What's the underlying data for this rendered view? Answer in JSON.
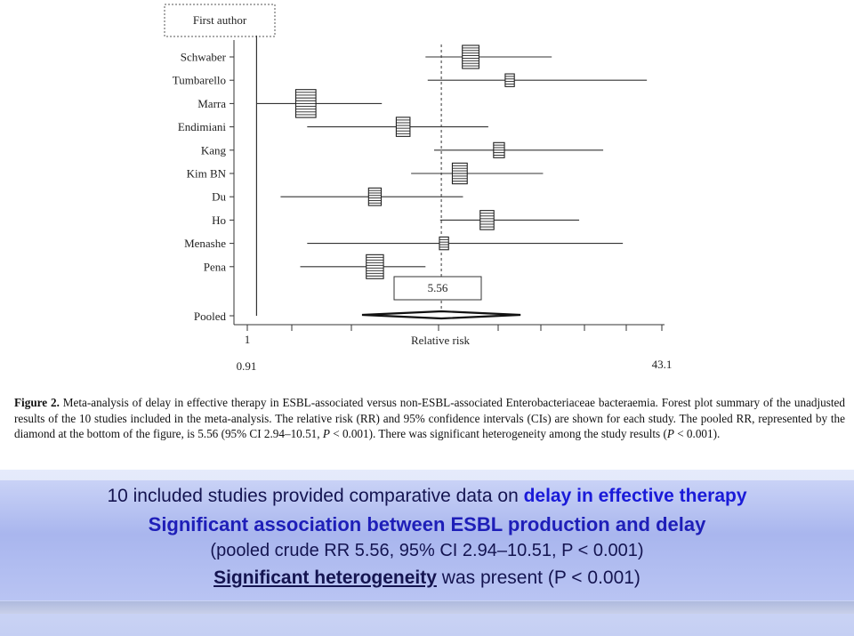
{
  "figure": {
    "header_label": "First author",
    "pooled_label": "Pooled",
    "pooled_value_label": "5.56",
    "axis_label": "Relative risk",
    "axis_tick_1": "1",
    "axis_min_label": "0.91",
    "axis_max_label": "43.1"
  },
  "chart_data": {
    "type": "forest",
    "xscale": "log",
    "xlim": [
      0.91,
      43.1
    ],
    "null_line": 1,
    "pooled": {
      "label": "Pooled",
      "rr": 5.56,
      "ci_low": 2.94,
      "ci_high": 10.51
    },
    "studies": [
      {
        "name": "Schwaber",
        "rr": 7.3,
        "ci_low": 4.8,
        "ci_high": 15.5,
        "weight": 1.0
      },
      {
        "name": "Tumbarello",
        "rr": 10.5,
        "ci_low": 4.9,
        "ci_high": 37.5,
        "weight": 0.35
      },
      {
        "name": "Marra",
        "rr": 1.58,
        "ci_low": 1.0,
        "ci_high": 3.2,
        "weight": 1.3
      },
      {
        "name": "Endimiani",
        "rr": 3.9,
        "ci_low": 1.6,
        "ci_high": 8.6,
        "weight": 0.75
      },
      {
        "name": "Kang",
        "rr": 9.5,
        "ci_low": 5.2,
        "ci_high": 25.0,
        "weight": 0.5
      },
      {
        "name": "Kim BN",
        "rr": 6.6,
        "ci_low": 4.2,
        "ci_high": 14.3,
        "weight": 0.85
      },
      {
        "name": "Du",
        "rr": 3.0,
        "ci_low": 1.25,
        "ci_high": 6.8,
        "weight": 0.65
      },
      {
        "name": "Ho",
        "rr": 8.5,
        "ci_low": 5.5,
        "ci_high": 20.0,
        "weight": 0.75
      },
      {
        "name": "Menashe",
        "rr": 5.7,
        "ci_low": 1.6,
        "ci_high": 30.0,
        "weight": 0.35
      },
      {
        "name": "Pena",
        "rr": 3.0,
        "ci_low": 1.5,
        "ci_high": 4.8,
        "weight": 1.05
      }
    ]
  },
  "caption": {
    "label": "Figure 2.",
    "text_1": " Meta-analysis of delay in effective therapy in ESBL-associated versus non-ESBL-associated Enterobacteriaceae bacteraemia. Forest plot summary of the unadjusted results of the 10 studies included in the meta-analysis. The relative risk (RR) and 95% confidence intervals (CIs) are shown for each study. The pooled RR, represented by the diamond at the bottom of the figure, is 5.56 (95% CI 2.94–10.51, ",
    "p_letter": "P",
    "text_2": " < 0.001). There was significant heterogeneity among the study results (",
    "p_letter_2": "P",
    "text_3": " < 0.001)."
  },
  "summary": {
    "line1_prefix": "10 included studies provided comparative data on ",
    "line1_highlight": "delay in effective therapy",
    "line2": "Significant association between ESBL production and delay",
    "line3": "(pooled crude RR 5.56, 95% CI 2.94–10.51, P < 0.001)",
    "line4_bold": "Significant heterogeneity",
    "line4_rest": " was present (P < 0.001)"
  }
}
